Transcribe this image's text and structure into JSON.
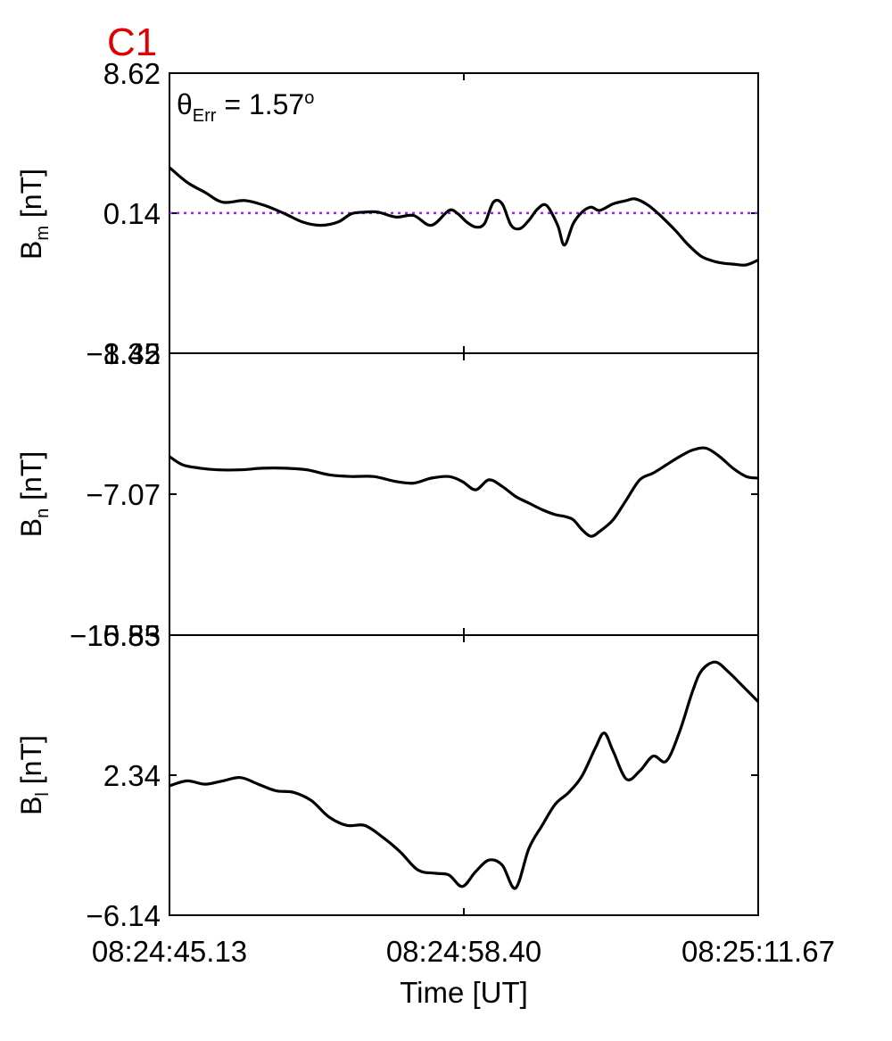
{
  "figure": {
    "label": "C1",
    "label_color": "#e00000",
    "annotation": {
      "symbol": "θ",
      "subscript": "Err",
      "text": " =  1.57",
      "superscript": "o"
    },
    "xlabel": "Time [UT]",
    "xticks": [
      "08:24:45.13",
      "08:24:58.40",
      "08:25:11.67"
    ]
  },
  "chart_data": [
    {
      "type": "line",
      "panel": "top",
      "ylabel_main": "B",
      "ylabel_sub": "m",
      "ylabel_unit": " [nT]",
      "yticks": [
        "8.62",
        "0.14",
        "−8.35"
      ],
      "ylim": [
        -8.35,
        8.62
      ],
      "xlim": [
        0,
        26.54
      ],
      "reference_line": {
        "y": 0.14,
        "color": "#a020f0",
        "style": "dotted"
      },
      "series": [
        {
          "color": "#000000",
          "x": [
            0,
            0.8,
            1.6,
            2.4,
            3.4,
            4.3,
            5.2,
            6.0,
            6.8,
            7.6,
            8.2,
            8.8,
            9.4,
            10.2,
            11.0,
            11.8,
            12.6,
            13.0,
            13.4,
            13.8,
            14.2,
            14.6,
            15.0,
            15.4,
            15.8,
            16.2,
            16.6,
            17.0,
            17.5,
            17.8,
            18.2,
            18.6,
            19.0,
            19.4,
            20.0,
            20.6,
            21.0,
            21.6,
            22.2,
            22.8,
            23.4,
            24.0,
            24.6,
            25.0,
            25.4,
            26.0,
            26.54
          ],
          "y": [
            2.9,
            2.0,
            1.4,
            0.8,
            0.9,
            0.6,
            0.1,
            -0.4,
            -0.6,
            -0.4,
            0.1,
            0.2,
            0.2,
            -0.1,
            0.0,
            -0.6,
            0.3,
            0.1,
            -0.4,
            -0.7,
            -0.5,
            0.8,
            0.7,
            -0.6,
            -0.8,
            -0.3,
            0.4,
            0.6,
            -0.6,
            -1.8,
            -0.5,
            0.2,
            0.5,
            0.3,
            0.7,
            0.9,
            1.0,
            0.6,
            -0.1,
            -0.9,
            -1.8,
            -2.5,
            -2.8,
            -2.9,
            -2.95,
            -3.0,
            -2.7
          ]
        }
      ]
    },
    {
      "type": "line",
      "panel": "middle",
      "ylabel_main": "B",
      "ylabel_sub": "n",
      "ylabel_unit": " [nT]",
      "yticks": [
        "1.42",
        "−7.07",
        "−15.55"
      ],
      "ylim": [
        -15.55,
        1.42
      ],
      "xlim": [
        0,
        26.54
      ],
      "series": [
        {
          "color": "#000000",
          "x": [
            0,
            0.6,
            1.4,
            2.2,
            3.2,
            4.2,
            5.2,
            6.2,
            7.2,
            8.2,
            9.2,
            10.2,
            11.0,
            11.8,
            12.6,
            13.2,
            13.8,
            14.4,
            15.0,
            15.6,
            16.2,
            16.8,
            17.4,
            17.8,
            18.2,
            18.6,
            19.0,
            19.4,
            20.0,
            20.6,
            21.2,
            21.8,
            22.4,
            23.0,
            23.6,
            24.2,
            24.8,
            25.4,
            26.0,
            26.54
          ],
          "y": [
            -4.8,
            -5.3,
            -5.5,
            -5.6,
            -5.6,
            -5.5,
            -5.5,
            -5.6,
            -5.9,
            -6.0,
            -6.0,
            -6.3,
            -6.4,
            -6.1,
            -6.0,
            -6.3,
            -6.8,
            -6.2,
            -6.6,
            -7.2,
            -7.6,
            -8.0,
            -8.3,
            -8.4,
            -8.6,
            -9.2,
            -9.6,
            -9.3,
            -8.6,
            -7.4,
            -6.2,
            -5.8,
            -5.3,
            -4.8,
            -4.4,
            -4.3,
            -4.8,
            -5.5,
            -6.0,
            -6.1
          ]
        }
      ]
    },
    {
      "type": "line",
      "panel": "bottom",
      "ylabel_main": "B",
      "ylabel_sub": "l",
      "ylabel_unit": " [nT]",
      "yticks": [
        "10.83",
        "2.34",
        "−6.14"
      ],
      "ylim": [
        -6.14,
        10.83
      ],
      "xlim": [
        0,
        26.54
      ],
      "series": [
        {
          "color": "#000000",
          "x": [
            0,
            0.8,
            1.6,
            2.4,
            3.2,
            4.0,
            4.8,
            5.6,
            6.4,
            7.2,
            8.0,
            8.8,
            9.6,
            10.4,
            11.2,
            12.0,
            12.6,
            13.2,
            13.8,
            14.4,
            15.0,
            15.6,
            16.2,
            16.8,
            17.4,
            18.0,
            18.6,
            19.2,
            19.6,
            20.0,
            20.6,
            21.2,
            21.8,
            22.4,
            23.0,
            23.6,
            24.0,
            24.6,
            25.2,
            25.8,
            26.54
          ],
          "y": [
            1.7,
            2.0,
            1.8,
            2.0,
            2.2,
            1.8,
            1.4,
            1.3,
            0.8,
            -0.2,
            -0.7,
            -0.7,
            -1.4,
            -2.3,
            -3.4,
            -3.6,
            -3.7,
            -4.4,
            -3.5,
            -2.8,
            -3.1,
            -4.5,
            -2.1,
            -0.7,
            0.6,
            1.3,
            2.3,
            4.0,
            4.9,
            3.8,
            2.1,
            2.6,
            3.5,
            3.2,
            5.0,
            7.5,
            8.7,
            9.2,
            8.6,
            7.8,
            6.8
          ]
        }
      ]
    }
  ]
}
